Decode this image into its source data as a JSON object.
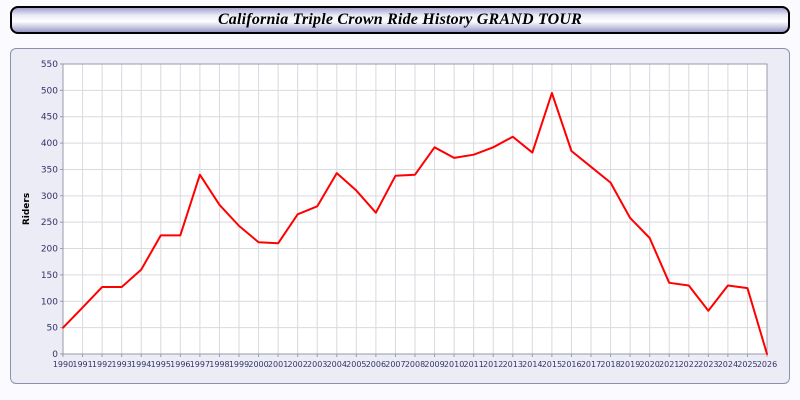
{
  "header": {
    "title": "California Triple Crown Ride History GRAND TOUR"
  },
  "colors": {
    "line": "#ff0000",
    "grid": "#d9d9e0",
    "plot_background": "#ffffff",
    "plot_border": "#9a9aaa",
    "tick_label": "#333366",
    "axis_label": "#000000",
    "panel_background": "#ececf6"
  },
  "chart_data": {
    "type": "line",
    "title": "California Triple Crown Ride History GRAND TOUR",
    "xlabel": "",
    "ylabel": "Riders",
    "ylim": [
      0,
      550
    ],
    "ytick_step": 50,
    "grid": true,
    "legend_position": "none",
    "x": [
      1990,
      1991,
      1992,
      1993,
      1994,
      1995,
      1996,
      1997,
      1998,
      1999,
      2000,
      2001,
      2002,
      2003,
      2004,
      2005,
      2006,
      2007,
      2008,
      2009,
      2010,
      2011,
      2012,
      2013,
      2014,
      2015,
      2016,
      2017,
      2018,
      2019,
      2020,
      2021,
      2022,
      2023,
      2024,
      2025,
      2026
    ],
    "series": [
      {
        "name": "Riders",
        "color": "#ff0000",
        "values": [
          50,
          88,
          127,
          127,
          160,
          225,
          225,
          340,
          283,
          243,
          212,
          210,
          265,
          280,
          343,
          310,
          268,
          338,
          340,
          392,
          372,
          378,
          392,
          412,
          382,
          495,
          385,
          355,
          325,
          258,
          220,
          135,
          130,
          82,
          130,
          125,
          0
        ]
      }
    ]
  }
}
